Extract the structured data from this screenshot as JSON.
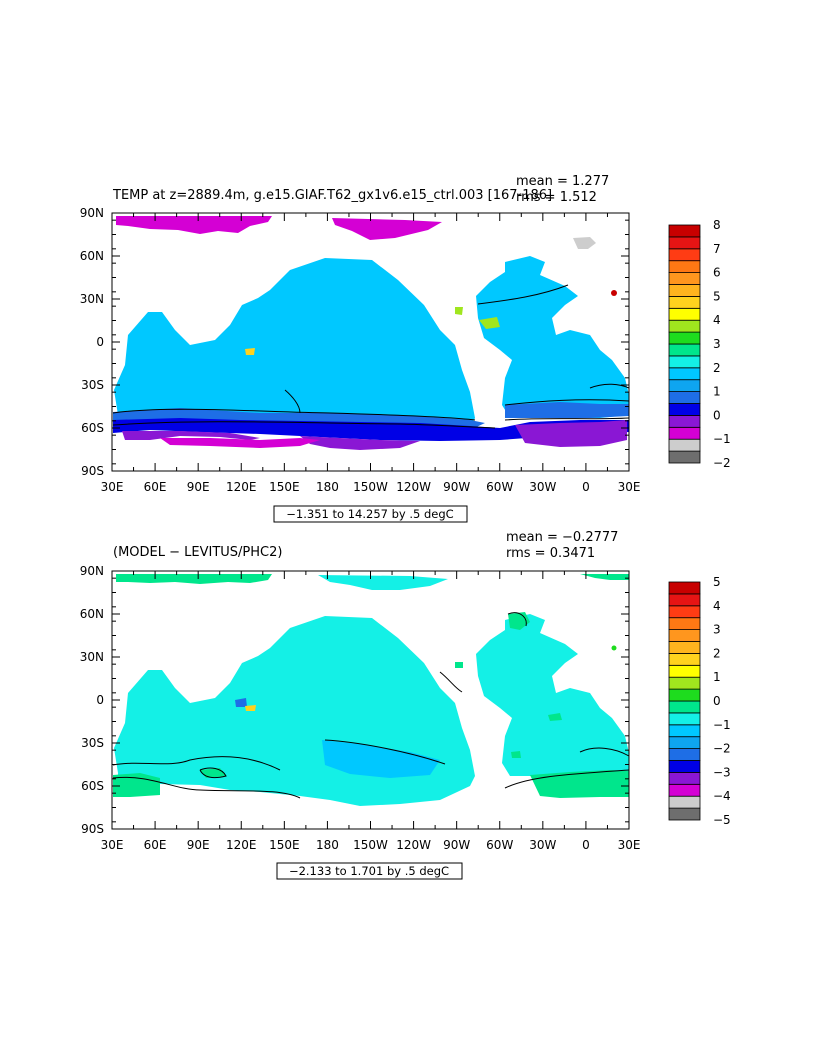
{
  "colors": {
    "land": "#ffffff",
    "frame": "#000000",
    "top_scale": [
      "#6e6e6e",
      "#cdcdcd",
      "#d400d4",
      "#8a17d4",
      "#0000e6",
      "#1e6ee6",
      "#0ea5f0",
      "#00c8ff",
      "#14f0e6",
      "#00e68c",
      "#1edc1e",
      "#a0e61e",
      "#ffff00",
      "#ffd21e",
      "#ffb41e",
      "#ff961e",
      "#ff7814",
      "#ff3c14",
      "#e61414",
      "#c80000"
    ],
    "bottom_scale": [
      "#6e6e6e",
      "#cdcdcd",
      "#d400d4",
      "#8a17d4",
      "#0000e6",
      "#1e6ee6",
      "#0ea5f0",
      "#00c8ff",
      "#14f0e6",
      "#00e68c",
      "#1edc1e",
      "#a0e61e",
      "#ffff00",
      "#ffd21e",
      "#ffb41e",
      "#ff961e",
      "#ff7814",
      "#ff3c14",
      "#e61414",
      "#c80000"
    ]
  },
  "panels": [
    {
      "title": "TEMP at z=2889.4m, g.e15.GIAF.T62_gx1v6.e15_ctrl.003  [167-186]",
      "mean": "mean = 1.277",
      "rms": "rms = 1.512",
      "range_label": "−1.351 to 14.257 by .5 degC",
      "lat_labels": [
        "90N",
        "60N",
        "30N",
        "0",
        "30S",
        "60S",
        "90S"
      ],
      "lon_labels": [
        "30E",
        "60E",
        "90E",
        "120E",
        "150E",
        "180",
        "150W",
        "120W",
        "90W",
        "60W",
        "30W",
        "0",
        "30E"
      ],
      "colorbar_labels": [
        "8",
        "7",
        "6",
        "5",
        "4",
        "3",
        "2",
        "1",
        "0",
        "−1",
        "−2"
      ]
    },
    {
      "title": "(MODEL − LEVITUS/PHC2)",
      "mean": "mean = −0.2777",
      "rms": "rms = 0.3471",
      "range_label": "−2.133 to 1.701 by .5 degC",
      "lat_labels": [
        "90N",
        "60N",
        "30N",
        "0",
        "30S",
        "60S",
        "90S"
      ],
      "lon_labels": [
        "30E",
        "60E",
        "90E",
        "120E",
        "150E",
        "180",
        "150W",
        "120W",
        "90W",
        "60W",
        "30W",
        "0",
        "30E"
      ],
      "colorbar_labels": [
        "5",
        "4",
        "3",
        "2",
        "1",
        "0",
        "−1",
        "−2",
        "−3",
        "−4",
        "−5"
      ]
    }
  ]
}
